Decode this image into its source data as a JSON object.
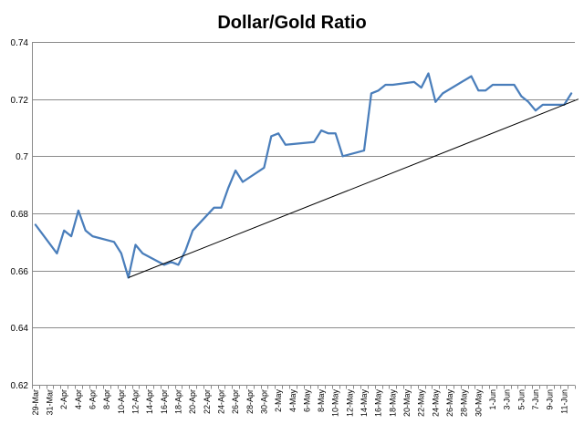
{
  "chart_data": {
    "type": "line",
    "title": "Dollar/Gold Ratio",
    "xlabel": "",
    "ylabel": "",
    "ylim": [
      0.62,
      0.74
    ],
    "y_ticks": [
      "0.62",
      "0.64",
      "0.66",
      "0.68",
      "0.7",
      "0.72",
      "0.74"
    ],
    "x_ticks": [
      "29-Mar",
      "31-Mar",
      "2-Apr",
      "4-Apr",
      "6-Apr",
      "8-Apr",
      "10-Apr",
      "12-Apr",
      "14-Apr",
      "16-Apr",
      "18-Apr",
      "20-Apr",
      "22-Apr",
      "24-Apr",
      "26-Apr",
      "28-Apr",
      "30-Apr",
      "2-May",
      "4-May",
      "6-May",
      "8-May",
      "10-May",
      "12-May",
      "14-May",
      "16-May",
      "18-May",
      "20-May",
      "22-May",
      "24-May",
      "26-May",
      "28-May",
      "30-May",
      "1-Jun",
      "3-Jun",
      "5-Jun",
      "7-Jun",
      "9-Jun",
      "11-Jun"
    ],
    "grid": "horizontal",
    "legend": "none",
    "x_start": "2011-03-29",
    "x_end": "2011-06-12",
    "series": [
      {
        "color": "#4a7ebb",
        "x": [
          "2011-03-29",
          "2011-04-01",
          "2011-04-02",
          "2011-04-03",
          "2011-04-04",
          "2011-04-05",
          "2011-04-06",
          "2011-04-09",
          "2011-04-10",
          "2011-04-11",
          "2011-04-12",
          "2011-04-13",
          "2011-04-16",
          "2011-04-17",
          "2011-04-18",
          "2011-04-19",
          "2011-04-20",
          "2011-04-23",
          "2011-04-24",
          "2011-04-25",
          "2011-04-26",
          "2011-04-27",
          "2011-04-30",
          "2011-05-01",
          "2011-05-02",
          "2011-05-03",
          "2011-05-07",
          "2011-05-08",
          "2011-05-09",
          "2011-05-10",
          "2011-05-11",
          "2011-05-14",
          "2011-05-15",
          "2011-05-16",
          "2011-05-17",
          "2011-05-18",
          "2011-05-21",
          "2011-05-22",
          "2011-05-23",
          "2011-05-24",
          "2011-05-25",
          "2011-05-29",
          "2011-05-30",
          "2011-05-31",
          "2011-06-01",
          "2011-06-04",
          "2011-06-05",
          "2011-06-06",
          "2011-06-07",
          "2011-06-08",
          "2011-06-11",
          "2011-06-12"
        ],
        "y": [
          0.676,
          0.666,
          0.674,
          0.672,
          0.681,
          0.674,
          0.672,
          0.67,
          0.666,
          0.6575,
          0.669,
          0.666,
          0.662,
          0.663,
          0.662,
          0.667,
          0.674,
          0.682,
          0.682,
          0.689,
          0.695,
          0.691,
          0.696,
          0.707,
          0.708,
          0.704,
          0.705,
          0.709,
          0.708,
          0.708,
          0.7,
          0.702,
          0.722,
          0.723,
          0.725,
          0.725,
          0.726,
          0.724,
          0.729,
          0.719,
          0.722,
          0.728,
          0.723,
          0.723,
          0.725,
          0.725,
          0.721,
          0.719,
          0.716,
          0.718,
          0.718,
          0.722
        ]
      },
      {
        "color": "#000000",
        "x": [
          "2011-04-11",
          "2011-06-13"
        ],
        "y": [
          0.6575,
          0.72
        ]
      }
    ]
  }
}
